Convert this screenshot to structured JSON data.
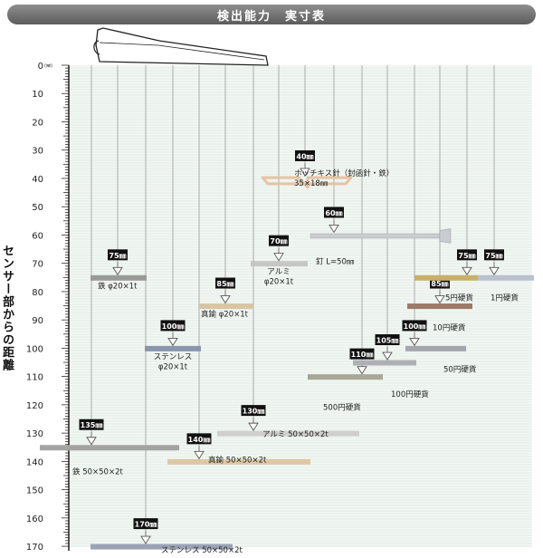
{
  "header": {
    "title": "検出能力　実寸表"
  },
  "chart_data": {
    "type": "bar",
    "title": "検出能力　実寸表",
    "ylabel": "センサー部からの距離",
    "y_unit": "(㎜)",
    "ylim": [
      0,
      170
    ],
    "y_ticks": [
      0,
      10,
      20,
      30,
      40,
      50,
      60,
      70,
      80,
      90,
      100,
      110,
      120,
      130,
      140,
      150,
      160,
      170
    ],
    "grid": true,
    "items": [
      {
        "id": "iron-rod",
        "value": 75,
        "badge": "75㎜",
        "label": [
          "鉄 φ20×1t"
        ],
        "color": "#9a9a9a"
      },
      {
        "id": "stainless-rod",
        "value": 100,
        "badge": "100㎜",
        "label": [
          "ステンレス",
          "φ20×1t"
        ],
        "color": "#8a96ad"
      },
      {
        "id": "brass-rod",
        "value": 85,
        "badge": "85㎜",
        "label": [
          "真鍮 φ20×1t"
        ],
        "color": "#d9c5a3"
      },
      {
        "id": "aluminum-rod",
        "value": 70,
        "badge": "70㎜",
        "label": [
          "アルミ",
          "φ20×1t"
        ],
        "color": "#c6c6c6"
      },
      {
        "id": "staple",
        "value": 40,
        "badge": "40㎜",
        "label": [
          "ホッチキス針（封函針・鉄）",
          "35×18㎜"
        ],
        "color": "#e6c3a4"
      },
      {
        "id": "nail",
        "value": 60,
        "badge": "60㎜",
        "label": [
          "釘 L=50㎜"
        ],
        "color": "#c9ccd0"
      },
      {
        "id": "coin-500",
        "value": 110,
        "badge": "110㎜",
        "label": [
          "500円硬貨"
        ],
        "color": "#a8a797"
      },
      {
        "id": "coin-100",
        "value": 105,
        "badge": "105㎜",
        "label": [
          "100円硬貨"
        ],
        "color": "#aeb0b4"
      },
      {
        "id": "coin-50",
        "value": 100,
        "badge": "100㎜",
        "label": [
          "50円硬貨"
        ],
        "color": "#a3a6ad"
      },
      {
        "id": "coin-10",
        "value": 85,
        "badge": "85㎜",
        "label": [
          "10円硬貨"
        ],
        "color": "#9c7a68"
      },
      {
        "id": "coin-5",
        "value": 75,
        "badge": "75㎜",
        "label": [
          "5円硬貨"
        ],
        "color": "#c8b06a"
      },
      {
        "id": "coin-1",
        "value": 75,
        "badge": "75㎜",
        "label": [
          "1円硬貨"
        ],
        "color": "#b9c1cf"
      },
      {
        "id": "iron-plate",
        "value": 135,
        "badge": "135㎜",
        "label": [
          "鉄 50×50×2t"
        ],
        "color": "#a3a3a3"
      },
      {
        "id": "brass-plate",
        "value": 140,
        "badge": "140㎜",
        "label": [
          "真鍮 50×50×2t"
        ],
        "color": "#dcc8a4"
      },
      {
        "id": "aluminum-plate",
        "value": 130,
        "badge": "130㎜",
        "label": [
          "アルミ 50×50×2t"
        ],
        "color": "#cfcfcf"
      },
      {
        "id": "stainless-plate",
        "value": 170,
        "badge": "170㎜",
        "label": [
          "ステンレス 50×50×2t"
        ],
        "color": "#9aa3b5"
      }
    ]
  }
}
